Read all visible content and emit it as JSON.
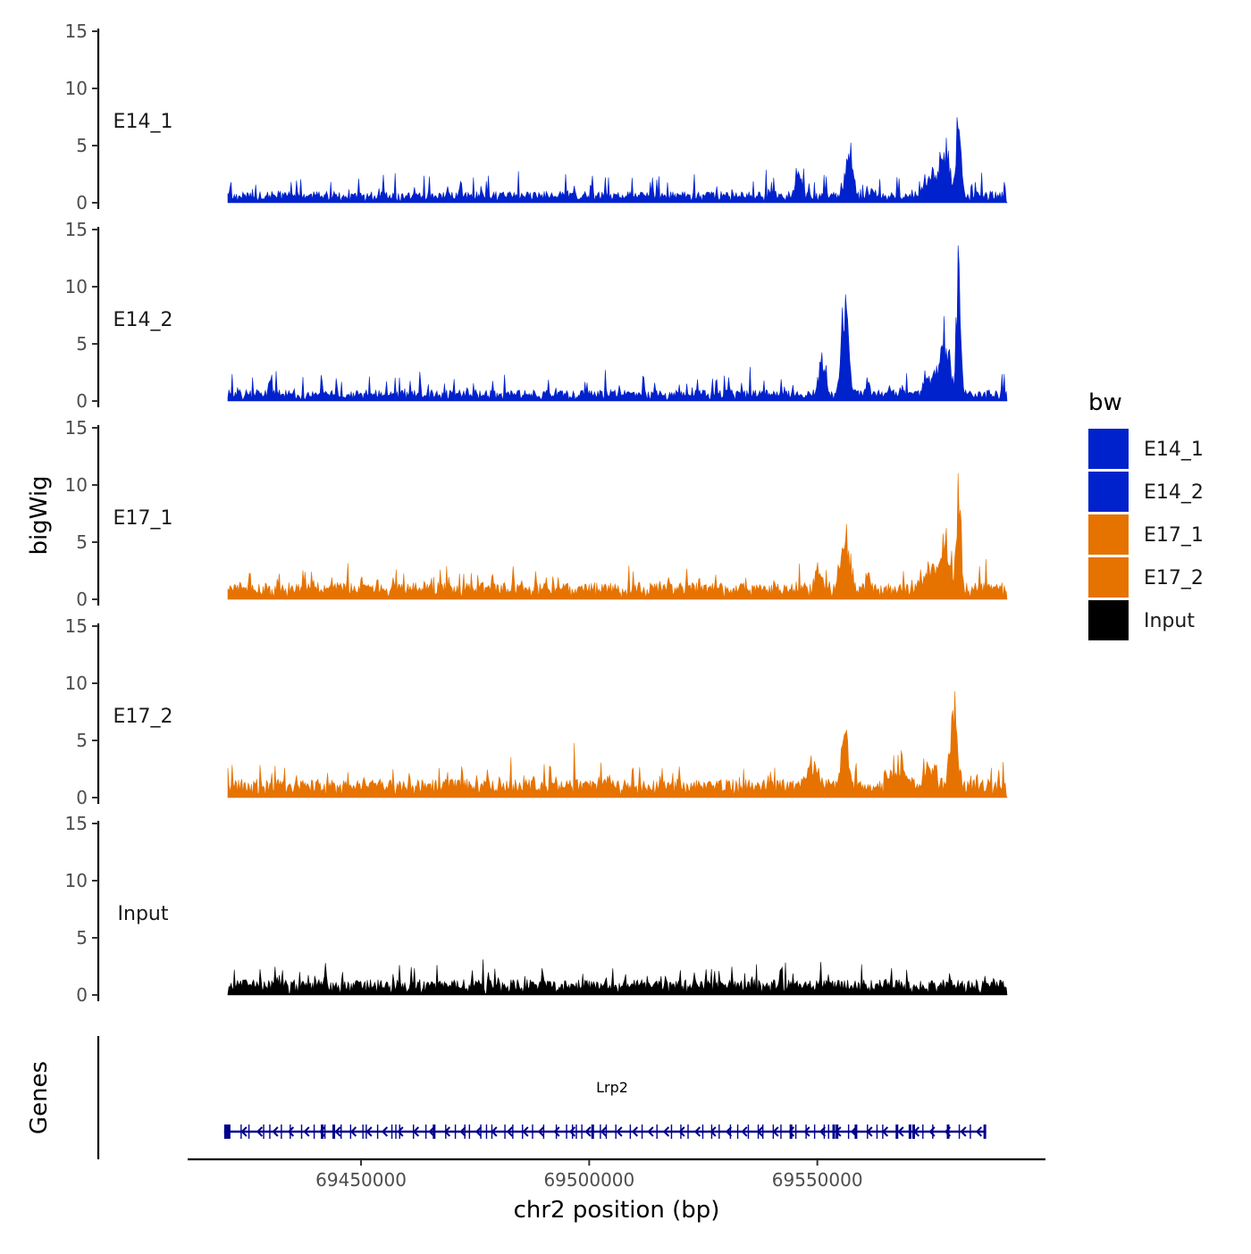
{
  "chart_data": {
    "type": "area",
    "ylabel": "bigWig",
    "xlabel": "chr2 position (bp)",
    "genes_label": "Genes",
    "x_range": [
      69412000,
      69600000
    ],
    "ylim": [
      0,
      15
    ],
    "y_ticks": [
      0,
      5,
      10,
      15
    ],
    "x_ticks": [
      69450000,
      69500000,
      69550000
    ],
    "x_tick_labels": [
      "69450000",
      "69500000",
      "69550000"
    ],
    "legend": {
      "title": "bw",
      "position": "right",
      "entries": [
        {
          "label": "E14_1",
          "color": "#0022CC"
        },
        {
          "label": "E14_2",
          "color": "#0022CC"
        },
        {
          "label": "E17_1",
          "color": "#E67300"
        },
        {
          "label": "E17_2",
          "color": "#E67300"
        },
        {
          "label": "Input",
          "color": "#000000"
        }
      ]
    },
    "tracks": [
      {
        "name": "E14_1",
        "color": "#0022CC",
        "base": 0.8,
        "noise": 1.0,
        "peaks": [
          [
            69546000,
            0.9,
            3.0
          ],
          [
            69557000,
            1.0,
            5.3
          ],
          [
            69562000,
            0.6,
            1.0
          ],
          [
            69575000,
            2.0,
            1.6
          ],
          [
            69578000,
            1.5,
            4.2
          ],
          [
            69581000,
            0.7,
            8.2
          ]
        ]
      },
      {
        "name": "E14_2",
        "color": "#0022CC",
        "base": 0.8,
        "noise": 1.0,
        "peaks": [
          [
            69551000,
            1.0,
            3.0
          ],
          [
            69556000,
            1.0,
            9.0
          ],
          [
            69561000,
            0.6,
            1.5
          ],
          [
            69575000,
            2.0,
            1.8
          ],
          [
            69578000,
            1.5,
            4.5
          ],
          [
            69581000,
            0.6,
            13.5
          ]
        ]
      },
      {
        "name": "E17_1",
        "color": "#E67300",
        "base": 1.2,
        "noise": 1.0,
        "peaks": [
          [
            69550000,
            1.0,
            2.0
          ],
          [
            69556000,
            1.0,
            6.5
          ],
          [
            69561000,
            0.6,
            1.5
          ],
          [
            69575000,
            2.0,
            1.8
          ],
          [
            69578000,
            1.5,
            4.0
          ],
          [
            69581000,
            0.6,
            9.5
          ]
        ]
      },
      {
        "name": "E17_2",
        "color": "#E67300",
        "base": 1.3,
        "noise": 1.0,
        "peaks": [
          [
            69549000,
            1.5,
            2.5
          ],
          [
            69556000,
            1.0,
            5.5
          ],
          [
            69568000,
            2.0,
            1.5
          ],
          [
            69575000,
            2.0,
            1.8
          ],
          [
            69580000,
            1.0,
            8.2
          ]
        ]
      },
      {
        "name": "Input",
        "color": "#000000",
        "base": 1.1,
        "noise": 0.9,
        "peaks": []
      }
    ],
    "gene": {
      "name": "Lrp2",
      "start": 69420000,
      "end": 69587000,
      "strand": "-",
      "color": "#00008B"
    }
  }
}
